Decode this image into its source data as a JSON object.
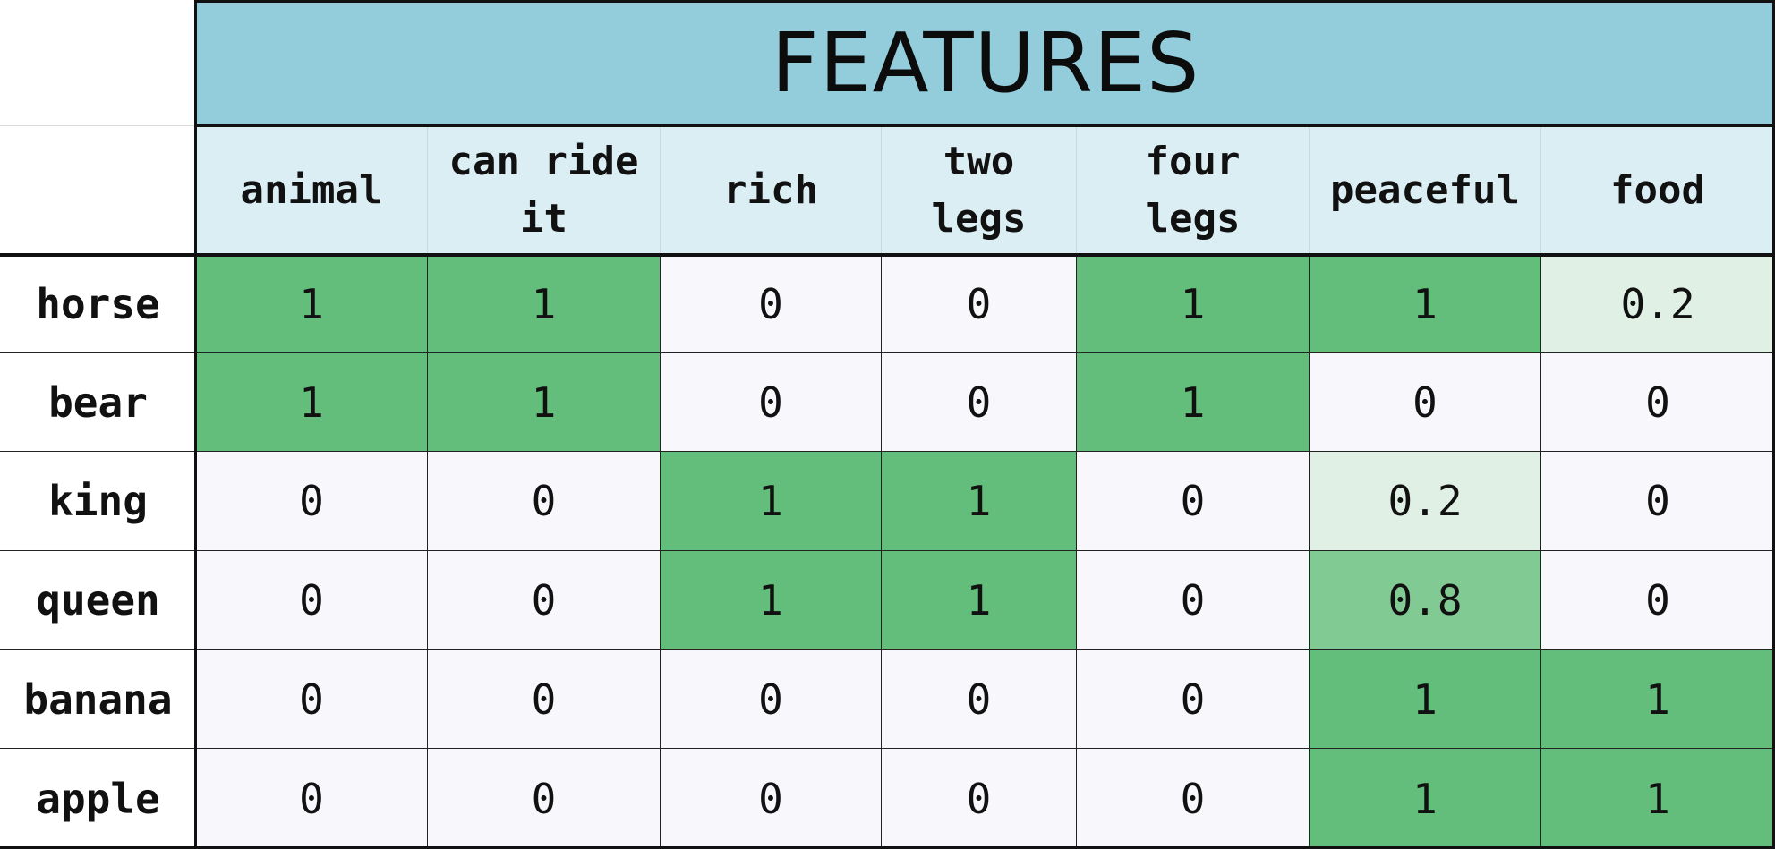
{
  "title": "FEATURES",
  "columns": [
    "animal",
    "can ride\nit",
    "rich",
    "two\nlegs",
    "four\nlegs",
    "peaceful",
    "food"
  ],
  "rows": [
    {
      "label": "horse",
      "values": [
        "1",
        "1",
        "0",
        "0",
        "1",
        "1",
        "0.2"
      ]
    },
    {
      "label": "bear",
      "values": [
        "1",
        "1",
        "0",
        "0",
        "1",
        "0",
        "0"
      ]
    },
    {
      "label": "king",
      "values": [
        "0",
        "0",
        "1",
        "1",
        "0",
        "0.2",
        "0"
      ]
    },
    {
      "label": "queen",
      "values": [
        "0",
        "0",
        "1",
        "1",
        "0",
        "0.8",
        "0"
      ]
    },
    {
      "label": "banana",
      "values": [
        "0",
        "0",
        "0",
        "0",
        "0",
        "1",
        "1"
      ]
    },
    {
      "label": "apple",
      "values": [
        "0",
        "0",
        "0",
        "0",
        "0",
        "1",
        "1"
      ]
    }
  ],
  "colors": {
    "title_bg": "#93cddb",
    "header_bg": "#daeef3",
    "value_1": "#63be7b",
    "value_0_8": "#82ca94",
    "value_0_2": "#e0f0e4",
    "value_0": "#f8f8fc"
  }
}
